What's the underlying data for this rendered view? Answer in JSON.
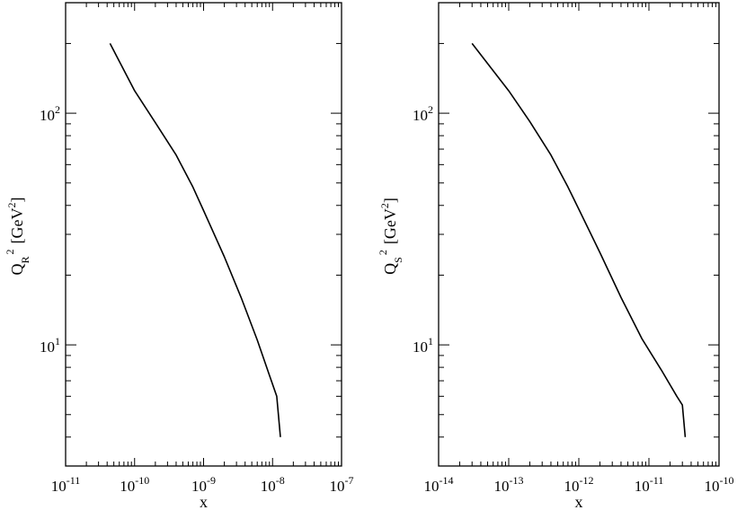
{
  "chart_data": [
    {
      "type": "line",
      "xlabel": "x",
      "ylabel_main": "Q",
      "ylabel_sub": "R",
      "ylabel_sup": "2",
      "ylabel_unit_pre": "[GeV",
      "ylabel_unit_sup": "2",
      "ylabel_unit_post": "]",
      "xscale": "log",
      "yscale": "log",
      "xlim": [
        1e-11,
        1e-07
      ],
      "ylim": [
        3,
        300
      ],
      "x_ticks": [
        {
          "base": "10",
          "exp": "-11",
          "value": 1e-11
        },
        {
          "base": "10",
          "exp": "-10",
          "value": 1e-10
        },
        {
          "base": "10",
          "exp": "-9",
          "value": 1e-09
        },
        {
          "base": "10",
          "exp": "-8",
          "value": 1e-08
        },
        {
          "base": "10",
          "exp": "-7",
          "value": 1e-07
        }
      ],
      "y_ticks": [
        {
          "base": "10",
          "exp": "1",
          "value": 10
        },
        {
          "base": "10",
          "exp": "2",
          "value": 100
        }
      ],
      "series": [
        {
          "x": [
            4.4e-11,
            1e-10,
            2e-10,
            4e-10,
            7e-10,
            1e-09,
            2e-09,
            3.5e-09,
            6e-09,
            9e-09,
            1.15e-08,
            1.3e-08
          ],
          "y": [
            200,
            125,
            91,
            66,
            48,
            38,
            24,
            16,
            10.5,
            7.4,
            6,
            4
          ]
        }
      ]
    },
    {
      "type": "line",
      "xlabel": "x",
      "ylabel_main": "Q",
      "ylabel_sub": "S",
      "ylabel_sup": "2",
      "ylabel_unit_pre": "[GeV",
      "ylabel_unit_sup": "2",
      "ylabel_unit_post": "]",
      "xscale": "log",
      "yscale": "log",
      "xlim": [
        1e-14,
        1e-10
      ],
      "ylim": [
        3,
        300
      ],
      "x_ticks": [
        {
          "base": "10",
          "exp": "-14",
          "value": 1e-14
        },
        {
          "base": "10",
          "exp": "-13",
          "value": 1e-13
        },
        {
          "base": "10",
          "exp": "-12",
          "value": 1e-12
        },
        {
          "base": "10",
          "exp": "-11",
          "value": 1e-11
        },
        {
          "base": "10",
          "exp": "-10",
          "value": 1e-10
        }
      ],
      "y_ticks": [
        {
          "base": "10",
          "exp": "1",
          "value": 10
        },
        {
          "base": "10",
          "exp": "2",
          "value": 100
        }
      ],
      "series": [
        {
          "x": [
            3e-14,
            1e-13,
            2e-13,
            4e-13,
            7e-13,
            1e-12,
            2e-12,
            4e-12,
            8e-12,
            1.5e-11,
            2.5e-11,
            3e-11,
            3.3e-11
          ],
          "y": [
            200,
            125,
            92,
            66,
            48,
            38.5,
            25,
            16,
            10.6,
            7.8,
            6,
            5.5,
            4
          ]
        }
      ]
    }
  ]
}
